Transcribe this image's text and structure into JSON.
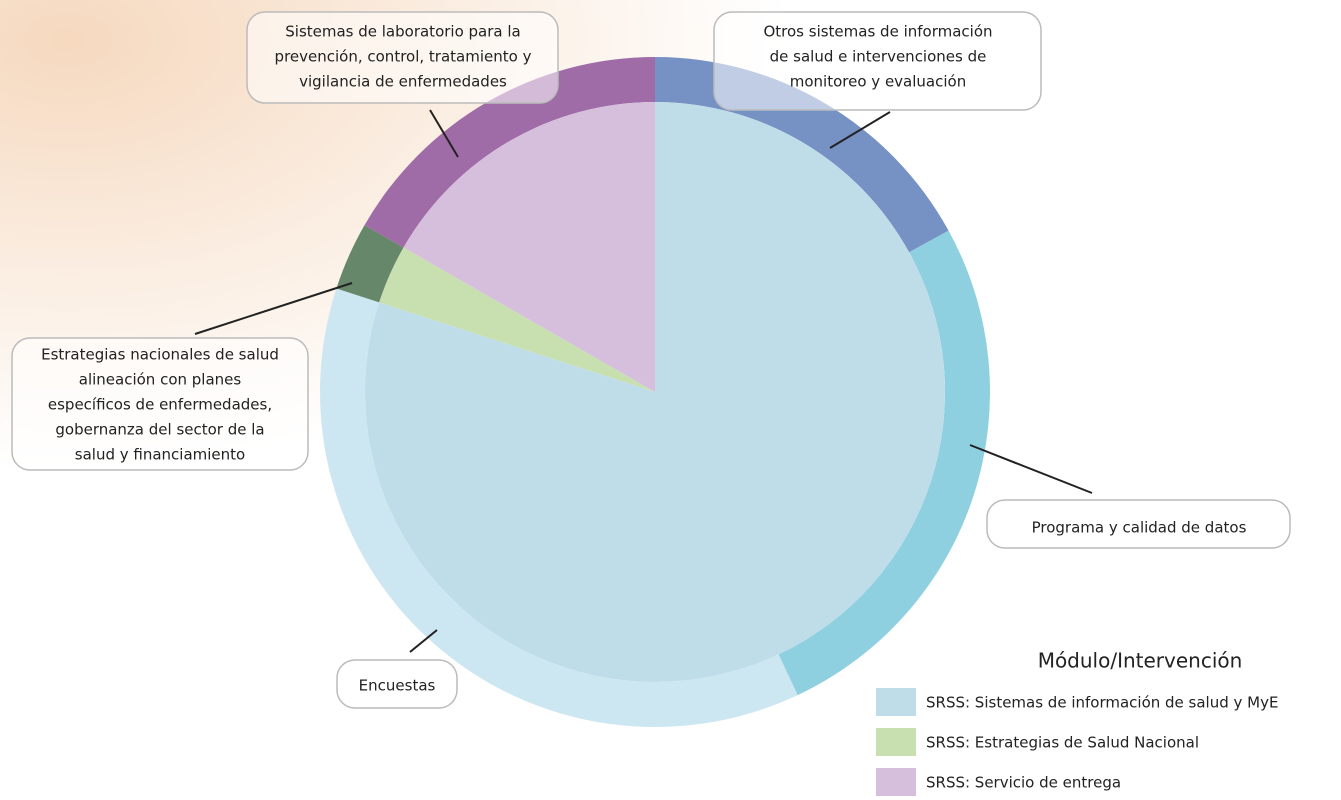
{
  "chart_data": {
    "type": "nested-pie",
    "legend_title": "Módulo/Intervención",
    "inner": {
      "categories": [
        "SRSS: Sistemas de información de salud y MyE",
        "SRSS: Estrategias de Salud Nacional",
        "SRSS: Servicio de entrega"
      ],
      "colors": [
        "#bfdde8",
        "#c8e0b0",
        "#d6bfdc"
      ],
      "values": [
        80,
        3.3,
        16.7
      ]
    },
    "outer": {
      "categories": [
        [
          "Otros sistemas de información",
          "de salud e intervenciones de",
          "monitoreo y evaluación"
        ],
        [
          "Programa y calidad de datos"
        ],
        [
          "Encuestas"
        ],
        [
          "Estrategias nacionales de salud",
          "alineación con planes",
          "específicos de enfermedades,",
          "gobernanza del sector de la",
          "salud y financiamiento"
        ],
        [
          "Sistemas de laboratorio para la",
          "prevención, control, tratamiento y",
          "vigilancia de enfermedades"
        ]
      ],
      "colors": [
        "#7691c4",
        "#8ed0e0",
        "#cce7f2",
        "#66876a",
        "#a06ca8"
      ],
      "values": [
        17,
        26,
        37,
        3.3,
        16.7
      ]
    }
  }
}
